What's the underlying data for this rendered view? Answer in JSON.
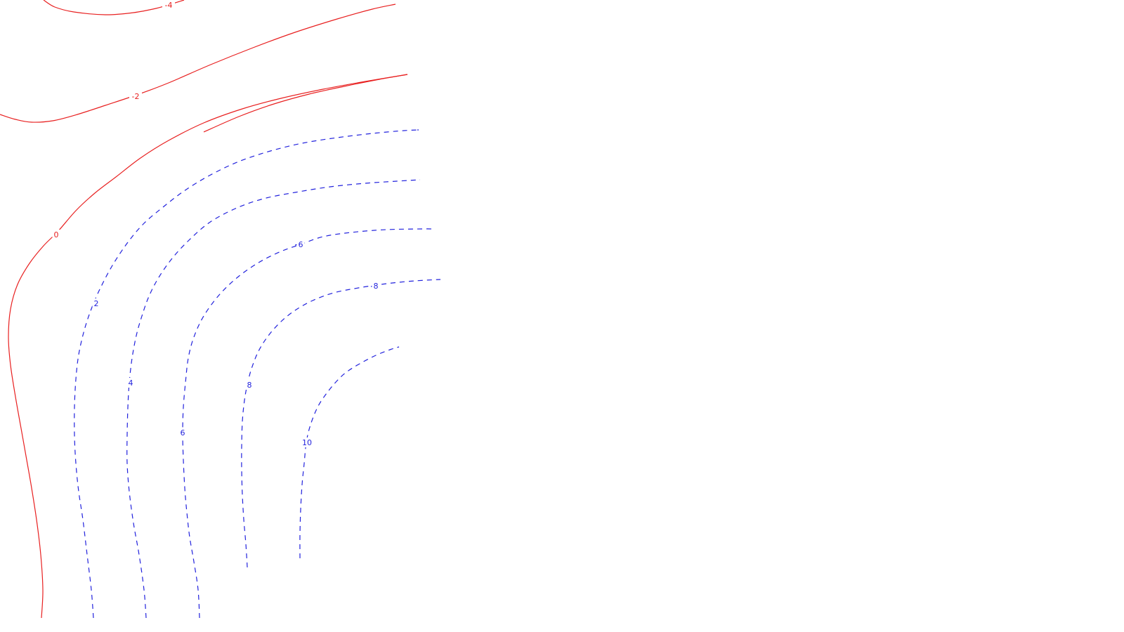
{
  "chart_data": {
    "type": "contour",
    "title": "",
    "xlabel": "",
    "ylabel": "",
    "grid": false,
    "legend": "none",
    "colors": {
      "negative": "#e82020",
      "positive": "#2222dd",
      "background": "#ffffff"
    },
    "line_styles": {
      "negative": "solid",
      "positive": "dashed"
    },
    "levels": [
      {
        "level": -4,
        "label": "-4",
        "style": "negative"
      },
      {
        "level": -2,
        "label": "-2",
        "style": "negative"
      },
      {
        "level": -2,
        "label": "",
        "style": "negative"
      },
      {
        "level": 0,
        "label": "0",
        "style": "negative"
      },
      {
        "level": 2,
        "label": "2",
        "style": "positive"
      },
      {
        "level": 4,
        "label": "4",
        "style": "positive"
      },
      {
        "level": 6,
        "label": "6",
        "style": "positive"
      },
      {
        "level": 8,
        "label": "8",
        "style": "positive"
      },
      {
        "level": 10,
        "label": "10",
        "style": "positive"
      },
      {
        "level": 4,
        "label": "",
        "style": "positive"
      },
      {
        "level": 6,
        "label": "6",
        "style": "positive"
      },
      {
        "level": 8,
        "label": "8",
        "style": "positive"
      },
      {
        "level": 10,
        "label": "",
        "style": "positive"
      }
    ]
  }
}
